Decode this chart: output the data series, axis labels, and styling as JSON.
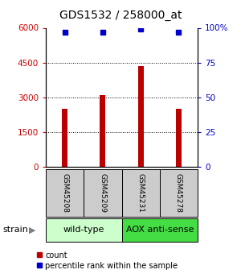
{
  "title": "GDS1532 / 258000_at",
  "samples": [
    "GSM45208",
    "GSM45209",
    "GSM45231",
    "GSM45278"
  ],
  "counts": [
    2500,
    3100,
    4350,
    2500
  ],
  "percentiles": [
    97,
    97,
    99,
    97
  ],
  "ylim_left": [
    0,
    6000
  ],
  "ylim_right": [
    0,
    100
  ],
  "yticks_left": [
    0,
    1500,
    3000,
    4500,
    6000
  ],
  "yticks_right": [
    0,
    25,
    50,
    75,
    100
  ],
  "ytick_labels_left": [
    "0",
    "1500",
    "3000",
    "4500",
    "6000"
  ],
  "ytick_labels_right": [
    "0",
    "25",
    "50",
    "75",
    "100%"
  ],
  "bar_color": "#bb0000",
  "dot_color": "#0000cc",
  "grid_color": "#000000",
  "strain_groups": [
    {
      "label": "wild-type",
      "samples": [
        0,
        1
      ],
      "color": "#ccffcc"
    },
    {
      "label": "AOX anti-sense",
      "samples": [
        2,
        3
      ],
      "color": "#44dd44"
    }
  ],
  "sample_box_color": "#cccccc",
  "bar_width": 0.15,
  "dot_size": 5,
  "left_tick_color": "#cc0000",
  "right_tick_color": "#0000cc",
  "background_color": "#ffffff",
  "title_fontsize": 10,
  "tick_fontsize": 7.5,
  "sample_fontsize": 6.5,
  "strain_fontsize": 8,
  "legend_fontsize": 7
}
